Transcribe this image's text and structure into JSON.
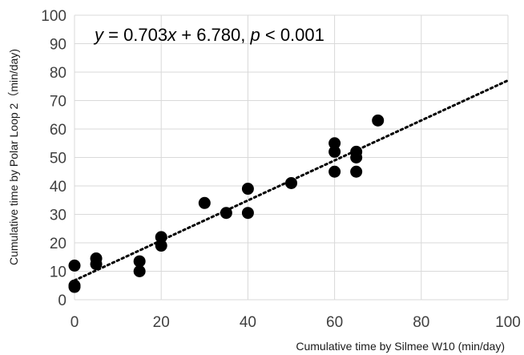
{
  "chart_data": {
    "type": "scatter",
    "xlabel": "Cumulative time by Silmee W10 (min/day)",
    "ylabel": "Cumulative time by Polar Loop 2（min/day)",
    "xlim": [
      0,
      100
    ],
    "ylim": [
      0,
      100
    ],
    "xticks": [
      "0",
      "20",
      "40",
      "60",
      "80",
      "100"
    ],
    "yticks": [
      "0",
      "10",
      "20",
      "30",
      "40",
      "50",
      "60",
      "70",
      "80",
      "90",
      "100"
    ],
    "grid": true,
    "legend": "none",
    "points": [
      {
        "x": 0,
        "y": 4.5
      },
      {
        "x": 0,
        "y": 5
      },
      {
        "x": 0,
        "y": 12
      },
      {
        "x": 5,
        "y": 12.5
      },
      {
        "x": 5,
        "y": 14.5
      },
      {
        "x": 15,
        "y": 10
      },
      {
        "x": 15,
        "y": 13.5
      },
      {
        "x": 20,
        "y": 19
      },
      {
        "x": 20,
        "y": 22
      },
      {
        "x": 30,
        "y": 34
      },
      {
        "x": 35,
        "y": 30.5
      },
      {
        "x": 40,
        "y": 30.5
      },
      {
        "x": 40,
        "y": 39
      },
      {
        "x": 50,
        "y": 41
      },
      {
        "x": 60,
        "y": 45
      },
      {
        "x": 60,
        "y": 52
      },
      {
        "x": 60,
        "y": 55
      },
      {
        "x": 65,
        "y": 45
      },
      {
        "x": 65,
        "y": 50
      },
      {
        "x": 65,
        "y": 52
      },
      {
        "x": 70,
        "y": 63
      }
    ],
    "trendline": {
      "slope": 0.703,
      "intercept": 6.78,
      "style": "dotted"
    },
    "equation": {
      "y": "y",
      "eq": " = 0.703",
      "x": "x",
      "mid": " + 6.780, ",
      "p": "p",
      "rest": " < 0.001"
    },
    "colors": {
      "points": "#000000",
      "trendline": "#000000",
      "grid": "#d9d9d9",
      "ticks": "#404040"
    }
  }
}
